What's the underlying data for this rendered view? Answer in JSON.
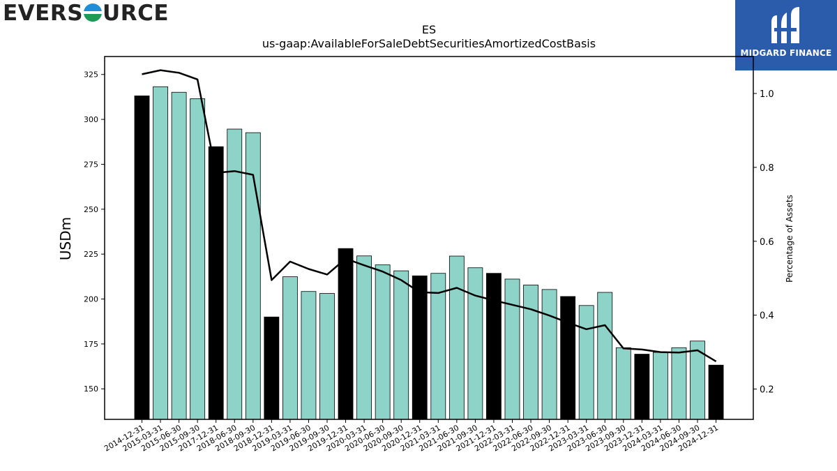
{
  "logos": {
    "left": {
      "text_before": "EVERS",
      "text_after": "URCE"
    },
    "right": {
      "text": "MIDGARD FINANCE"
    }
  },
  "colors": {
    "annual_bar": "#000000",
    "quarterly_bar": "#8ed3c7",
    "line": "#000000",
    "logo_right_bg": "#2b5bab",
    "logo_left_blue": "#1e8fd6",
    "logo_left_green": "#1f9a55"
  },
  "chart_data": {
    "type": "bar",
    "title": "ES",
    "subtitle": "us-gaap:AvailableForSaleDebtSecuritiesAmortizedCostBasis",
    "ylabel": "USDm",
    "y2label": "Percentage of Assets",
    "ylim": [
      133,
      335
    ],
    "y2lim": [
      0.118,
      1.1
    ],
    "yticks": [
      150,
      175,
      200,
      225,
      250,
      275,
      300,
      325
    ],
    "y2ticks": [
      0.2,
      0.4,
      0.6,
      0.8,
      1.0
    ],
    "y2tick_labels": [
      "0.2",
      "0.4",
      "0.6",
      "0.8",
      "1.0"
    ],
    "categories": [
      "2014-12-31",
      "2015-03-31",
      "2015-06-30",
      "2015-09-30",
      "2017-12-31",
      "2018-06-30",
      "2018-09-30",
      "2018-12-31",
      "2019-03-31",
      "2019-06-30",
      "2019-09-30",
      "2019-12-31",
      "2020-03-31",
      "2020-06-30",
      "2020-09-30",
      "2020-12-31",
      "2021-03-31",
      "2021-06-30",
      "2021-09-30",
      "2021-12-31",
      "2022-03-31",
      "2022-06-30",
      "2022-09-30",
      "2022-12-31",
      "2023-03-31",
      "2023-06-30",
      "2023-09-30",
      "2023-12-31",
      "2024-03-31",
      "2024-06-30",
      "2024-09-30",
      "2024-12-31"
    ],
    "values": [
      313.1,
      318.2,
      315.1,
      311.5,
      284.8,
      294.6,
      292.6,
      190.0,
      212.4,
      204.2,
      203.1,
      228.1,
      224.0,
      219.0,
      215.7,
      212.9,
      214.3,
      223.9,
      217.4,
      214.3,
      211.1,
      207.8,
      205.3,
      201.4,
      196.4,
      203.7,
      172.9,
      169.3,
      170.3,
      172.9,
      176.6,
      163.2
    ],
    "annual": [
      true,
      false,
      false,
      false,
      true,
      false,
      false,
      true,
      false,
      false,
      false,
      true,
      false,
      false,
      false,
      true,
      false,
      false,
      false,
      true,
      false,
      false,
      false,
      true,
      false,
      false,
      false,
      true,
      false,
      false,
      false,
      true
    ],
    "line_values": [
      1.052,
      1.063,
      1.056,
      1.038,
      0.785,
      0.79,
      0.78,
      0.495,
      0.545,
      0.525,
      0.51,
      0.553,
      0.535,
      0.518,
      0.495,
      0.462,
      0.46,
      0.474,
      0.453,
      0.44,
      0.428,
      0.416,
      0.399,
      0.38,
      0.362,
      0.373,
      0.31,
      0.307,
      0.3,
      0.299,
      0.305,
      0.275
    ]
  }
}
